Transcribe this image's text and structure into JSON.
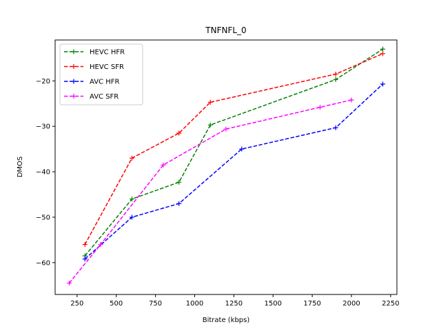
{
  "chart_data": {
    "type": "line",
    "title": "TNFNFL_0",
    "xlabel": "Bitrate (kbps)",
    "ylabel": "DMOS",
    "xlim": [
      110,
      2290
    ],
    "ylim": [
      -67,
      -11
    ],
    "xticks": [
      250,
      500,
      750,
      1000,
      1250,
      1500,
      1750,
      2000,
      2250
    ],
    "yticks": [
      -60,
      -50,
      -40,
      -30,
      -20
    ],
    "grid": false,
    "legend_position": "top-left",
    "series": [
      {
        "name": "HEVC HFR",
        "color": "#008000",
        "x": [
          300,
          600,
          900,
          1100,
          1900,
          2200
        ],
        "y": [
          -58.5,
          -46.0,
          -42.3,
          -29.7,
          -19.7,
          -13.0
        ]
      },
      {
        "name": "HEVC SFR",
        "color": "#ff0000",
        "x": [
          300,
          600,
          900,
          1100,
          1900,
          2200
        ],
        "y": [
          -56.0,
          -37.0,
          -31.5,
          -24.7,
          -18.5,
          -14.0
        ]
      },
      {
        "name": "AVC HFR",
        "color": "#0000ff",
        "x": [
          300,
          600,
          900,
          1300,
          1900,
          2200
        ],
        "y": [
          -59.2,
          -50.0,
          -47.0,
          -35.0,
          -30.3,
          -20.7
        ]
      },
      {
        "name": "AVC SFR",
        "color": "#ff00ff",
        "x": [
          200,
          400,
          800,
          1200,
          1800,
          2000
        ],
        "y": [
          -64.5,
          -56.0,
          -38.5,
          -30.6,
          -25.8,
          -24.2
        ]
      }
    ]
  }
}
